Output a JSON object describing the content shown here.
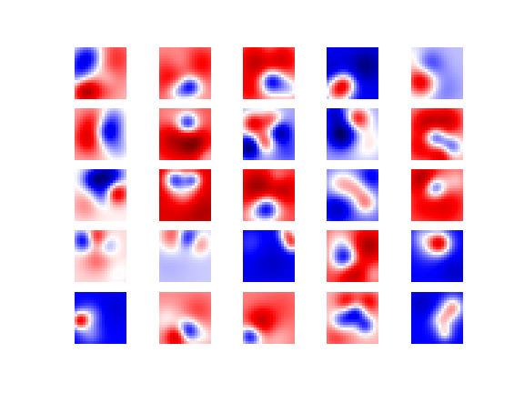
{
  "figure": {
    "colormap": {
      "name": "seismic",
      "low": "#00004c",
      "negative": "#0000ff",
      "center": "#ffffff",
      "positive": "#ff0000",
      "high": "#800000"
    },
    "grid": {
      "rows": 5,
      "cols": 5
    },
    "axes_visible": false,
    "tiles": [
      {
        "base": 0.25,
        "blobs": [
          [
            0.15,
            0.45,
            0.25,
            -1.3
          ],
          [
            0.3,
            0.15,
            0.2,
            -0.9
          ],
          [
            0.75,
            0.2,
            0.3,
            0.6
          ],
          [
            0.4,
            0.7,
            0.25,
            0.9
          ],
          [
            0.2,
            0.85,
            0.15,
            1.1
          ],
          [
            0.6,
            0.6,
            0.15,
            -0.5
          ]
        ]
      },
      {
        "base": 0.4,
        "blobs": [
          [
            0.3,
            0.6,
            0.3,
            0.8
          ],
          [
            0.6,
            0.75,
            0.15,
            -1.6
          ],
          [
            0.45,
            0.35,
            0.2,
            -0.5
          ],
          [
            0.8,
            0.3,
            0.25,
            0.6
          ],
          [
            0.35,
            0.85,
            0.15,
            -0.9
          ]
        ]
      },
      {
        "base": 0.55,
        "blobs": [
          [
            0.55,
            0.65,
            0.18,
            -1.8
          ],
          [
            0.3,
            0.3,
            0.25,
            1.0
          ],
          [
            0.75,
            0.25,
            0.2,
            0.7
          ],
          [
            0.9,
            0.8,
            0.15,
            -0.6
          ],
          [
            0.15,
            0.8,
            0.2,
            0.5
          ],
          [
            0.5,
            0.1,
            0.15,
            -0.4
          ]
        ]
      },
      {
        "base": -1.1,
        "blobs": [
          [
            0.2,
            0.85,
            0.2,
            1.6
          ],
          [
            0.35,
            0.7,
            0.15,
            1.2
          ],
          [
            0.75,
            0.35,
            0.2,
            -0.6
          ],
          [
            0.1,
            0.5,
            0.2,
            -0.3
          ]
        ]
      },
      {
        "base": -0.25,
        "blobs": [
          [
            0.2,
            0.65,
            0.2,
            1.6
          ],
          [
            0.3,
            0.35,
            0.2,
            -0.9
          ],
          [
            0.1,
            0.25,
            0.2,
            0.5
          ],
          [
            0.6,
            0.8,
            0.25,
            -0.3
          ]
        ]
      },
      {
        "base": 0.3,
        "blobs": [
          [
            0.6,
            0.45,
            0.2,
            -1.7
          ],
          [
            0.4,
            0.3,
            0.2,
            0.9
          ],
          [
            0.3,
            0.6,
            0.2,
            1.0
          ],
          [
            0.85,
            0.8,
            0.2,
            -0.5
          ],
          [
            0.75,
            0.15,
            0.2,
            -0.6
          ]
        ]
      },
      {
        "base": 0.65,
        "blobs": [
          [
            0.55,
            0.3,
            0.15,
            -1.7
          ],
          [
            0.3,
            0.6,
            0.25,
            0.9
          ],
          [
            0.7,
            0.7,
            0.2,
            1.2
          ],
          [
            0.2,
            0.2,
            0.2,
            -0.3
          ],
          [
            0.9,
            0.9,
            0.15,
            -0.6
          ]
        ]
      },
      {
        "base": -0.35,
        "blobs": [
          [
            0.2,
            0.3,
            0.15,
            1.4
          ],
          [
            0.55,
            0.25,
            0.15,
            1.1
          ],
          [
            0.4,
            0.65,
            0.15,
            1.3
          ],
          [
            0.15,
            0.75,
            0.15,
            -1.6
          ],
          [
            0.7,
            0.45,
            0.15,
            -1.3
          ],
          [
            0.85,
            0.8,
            0.2,
            -0.4
          ]
        ]
      },
      {
        "base": -0.35,
        "blobs": [
          [
            0.3,
            0.5,
            0.2,
            -1.6
          ],
          [
            0.6,
            0.2,
            0.15,
            1.3
          ],
          [
            0.75,
            0.65,
            0.25,
            0.5
          ],
          [
            0.15,
            0.1,
            0.15,
            -0.8
          ]
        ]
      },
      {
        "base": 0.35,
        "blobs": [
          [
            0.45,
            0.55,
            0.15,
            -1.5
          ],
          [
            0.75,
            0.75,
            0.15,
            -1.2
          ],
          [
            0.3,
            0.3,
            0.2,
            1.1
          ],
          [
            0.7,
            0.25,
            0.2,
            1.0
          ],
          [
            0.2,
            0.75,
            0.2,
            0.8
          ],
          [
            0.6,
            0.9,
            0.15,
            1.1
          ]
        ]
      },
      {
        "base": 0.05,
        "blobs": [
          [
            0.65,
            0.15,
            0.2,
            -1.6
          ],
          [
            0.35,
            0.2,
            0.15,
            -1.0
          ],
          [
            0.8,
            0.45,
            0.15,
            1.5
          ],
          [
            0.55,
            0.5,
            0.15,
            -0.7
          ],
          [
            0.2,
            0.7,
            0.2,
            0.4
          ]
        ]
      },
      {
        "base": 1.25,
        "blobs": [
          [
            0.3,
            0.2,
            0.15,
            -1.7
          ],
          [
            0.65,
            0.2,
            0.12,
            -1.4
          ],
          [
            0.5,
            0.45,
            0.2,
            -0.9
          ],
          [
            0.8,
            0.8,
            0.25,
            0.4
          ]
        ]
      },
      {
        "base": 0.7,
        "blobs": [
          [
            0.45,
            0.75,
            0.18,
            -1.9
          ],
          [
            0.3,
            0.35,
            0.25,
            1.1
          ],
          [
            0.8,
            0.4,
            0.2,
            0.7
          ],
          [
            0.65,
            0.15,
            0.15,
            -0.5
          ],
          [
            0.15,
            0.9,
            0.15,
            -0.3
          ]
        ]
      },
      {
        "base": -0.6,
        "blobs": [
          [
            0.3,
            0.3,
            0.2,
            0.9
          ],
          [
            0.75,
            0.65,
            0.15,
            1.0
          ],
          [
            0.6,
            0.4,
            0.15,
            0.6
          ],
          [
            0.2,
            0.75,
            0.2,
            -0.8
          ],
          [
            0.85,
            0.15,
            0.15,
            -0.5
          ]
        ]
      },
      {
        "base": 0.6,
        "blobs": [
          [
            0.45,
            0.35,
            0.15,
            -1.7
          ],
          [
            0.25,
            0.2,
            0.2,
            1.2
          ],
          [
            0.65,
            0.7,
            0.25,
            0.6
          ],
          [
            0.2,
            0.75,
            0.2,
            0.3
          ],
          [
            0.85,
            0.25,
            0.15,
            -0.4
          ]
        ]
      },
      {
        "base": 0.15,
        "blobs": [
          [
            0.2,
            0.2,
            0.15,
            -1.5
          ],
          [
            0.4,
            0.15,
            0.15,
            1.2
          ],
          [
            0.6,
            0.3,
            0.15,
            -0.7
          ],
          [
            0.45,
            0.55,
            0.2,
            0.5
          ],
          [
            0.8,
            0.8,
            0.2,
            -0.2
          ]
        ]
      },
      {
        "base": -0.2,
        "blobs": [
          [
            0.55,
            0.15,
            0.15,
            -1.3
          ],
          [
            0.3,
            0.1,
            0.2,
            1.0
          ],
          [
            0.75,
            0.25,
            0.15,
            0.8
          ],
          [
            0.2,
            0.65,
            0.3,
            -0.1
          ]
        ]
      },
      {
        "base": -1.1,
        "blobs": [
          [
            0.95,
            0.25,
            0.12,
            1.6
          ],
          [
            0.85,
            0.05,
            0.12,
            1.3
          ],
          [
            0.55,
            0.6,
            0.25,
            -0.2
          ],
          [
            0.15,
            0.25,
            0.2,
            0.3
          ]
        ]
      },
      {
        "base": 0.7,
        "blobs": [
          [
            0.35,
            0.55,
            0.18,
            -1.8
          ],
          [
            0.8,
            0.3,
            0.2,
            1.0
          ],
          [
            0.5,
            0.8,
            0.2,
            1.0
          ],
          [
            0.25,
            0.2,
            0.2,
            -0.5
          ],
          [
            0.9,
            0.85,
            0.15,
            -0.4
          ]
        ]
      },
      {
        "base": -1.0,
        "blobs": [
          [
            0.55,
            0.25,
            0.15,
            1.8
          ],
          [
            0.35,
            0.3,
            0.2,
            0.6
          ],
          [
            0.2,
            0.1,
            0.15,
            0.4
          ],
          [
            0.85,
            0.8,
            0.2,
            -0.3
          ]
        ]
      },
      {
        "base": -1.0,
        "blobs": [
          [
            0.1,
            0.55,
            0.12,
            1.8
          ],
          [
            0.3,
            0.45,
            0.15,
            0.6
          ],
          [
            0.3,
            0.8,
            0.15,
            0.5
          ],
          [
            0.8,
            0.3,
            0.25,
            -0.2
          ]
        ]
      },
      {
        "base": 0.45,
        "blobs": [
          [
            0.55,
            0.75,
            0.15,
            -1.6
          ],
          [
            0.35,
            0.85,
            0.15,
            1.2
          ],
          [
            0.15,
            0.55,
            0.2,
            -0.4
          ],
          [
            0.75,
            0.35,
            0.2,
            0.3
          ],
          [
            0.9,
            0.85,
            0.15,
            -0.3
          ]
        ]
      },
      {
        "base": 0.5,
        "blobs": [
          [
            0.15,
            0.85,
            0.15,
            -1.6
          ],
          [
            0.35,
            0.6,
            0.2,
            1.0
          ],
          [
            0.75,
            0.3,
            0.25,
            0.2
          ],
          [
            0.6,
            0.85,
            0.2,
            -0.3
          ]
        ]
      },
      {
        "base": 0.3,
        "blobs": [
          [
            0.55,
            0.4,
            0.15,
            -1.4
          ],
          [
            0.3,
            0.55,
            0.15,
            -1.0
          ],
          [
            0.75,
            0.65,
            0.12,
            -1.0
          ],
          [
            0.4,
            0.2,
            0.15,
            0.9
          ],
          [
            0.8,
            0.2,
            0.15,
            0.8
          ],
          [
            0.2,
            0.85,
            0.2,
            0.5
          ]
        ]
      },
      {
        "base": -1.0,
        "blobs": [
          [
            0.8,
            0.3,
            0.15,
            1.3
          ],
          [
            0.6,
            0.55,
            0.15,
            1.1
          ],
          [
            0.65,
            0.8,
            0.1,
            0.8
          ],
          [
            0.2,
            0.2,
            0.2,
            -0.3
          ]
        ]
      }
    ]
  }
}
